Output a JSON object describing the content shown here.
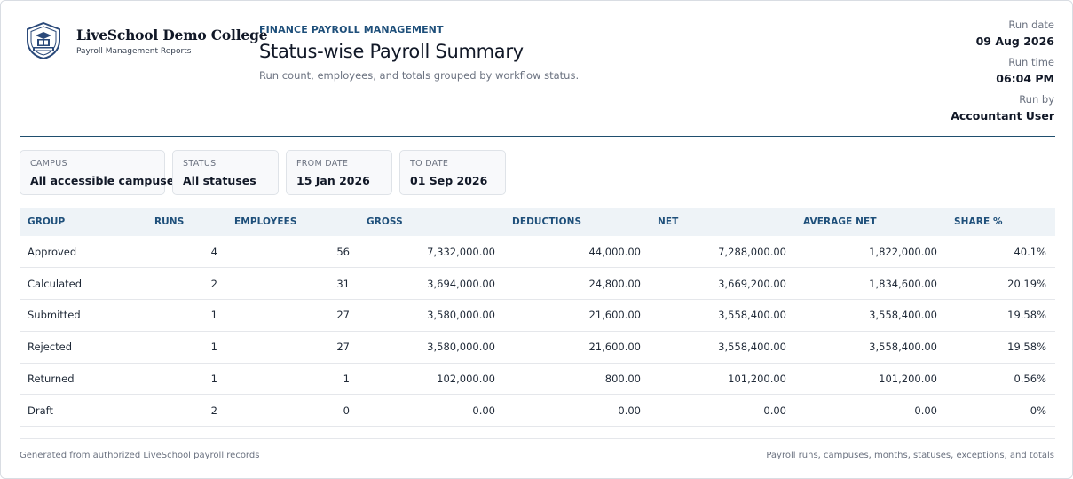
{
  "school": {
    "name": "LiveSchool Demo College",
    "subtitle": "Payroll Management Reports"
  },
  "report": {
    "eyebrow": "FINANCE PAYROLL MANAGEMENT",
    "title": "Status-wise Payroll Summary",
    "description": "Run count, employees, and totals grouped by workflow status."
  },
  "meta": {
    "run_date_label": "Run date",
    "run_date": "09 Aug 2026",
    "run_time_label": "Run time",
    "run_time": "06:04 PM",
    "run_by_label": "Run by",
    "run_by": "Accountant User"
  },
  "filters": [
    {
      "label": "CAMPUS",
      "value": "All accessible campuses"
    },
    {
      "label": "STATUS",
      "value": "All statuses"
    },
    {
      "label": "FROM DATE",
      "value": "15 Jan 2026"
    },
    {
      "label": "TO DATE",
      "value": "01 Sep 2026"
    }
  ],
  "table": {
    "headers": [
      "GROUP",
      "RUNS",
      "EMPLOYEES",
      "GROSS",
      "DEDUCTIONS",
      "NET",
      "AVERAGE NET",
      "SHARE %"
    ],
    "rows": [
      [
        "Approved",
        "4",
        "56",
        "7,332,000.00",
        "44,000.00",
        "7,288,000.00",
        "1,822,000.00",
        "40.1%"
      ],
      [
        "Calculated",
        "2",
        "31",
        "3,694,000.00",
        "24,800.00",
        "3,669,200.00",
        "1,834,600.00",
        "20.19%"
      ],
      [
        "Submitted",
        "1",
        "27",
        "3,580,000.00",
        "21,600.00",
        "3,558,400.00",
        "3,558,400.00",
        "19.58%"
      ],
      [
        "Rejected",
        "1",
        "27",
        "3,580,000.00",
        "21,600.00",
        "3,558,400.00",
        "3,558,400.00",
        "19.58%"
      ],
      [
        "Returned",
        "1",
        "1",
        "102,000.00",
        "800.00",
        "101,200.00",
        "101,200.00",
        "0.56%"
      ],
      [
        "Draft",
        "2",
        "0",
        "0.00",
        "0.00",
        "0.00",
        "0.00",
        "0%"
      ]
    ]
  },
  "footer": {
    "left": "Generated from authorized LiveSchool payroll records",
    "right": "Payroll runs, campuses, months, statuses, exceptions, and totals"
  },
  "colors": {
    "accent": "#1e4f7a",
    "rule": "#1f4e6e",
    "header_bg": "#eef3f7"
  },
  "icons": {
    "logo": "school-crest-icon"
  }
}
